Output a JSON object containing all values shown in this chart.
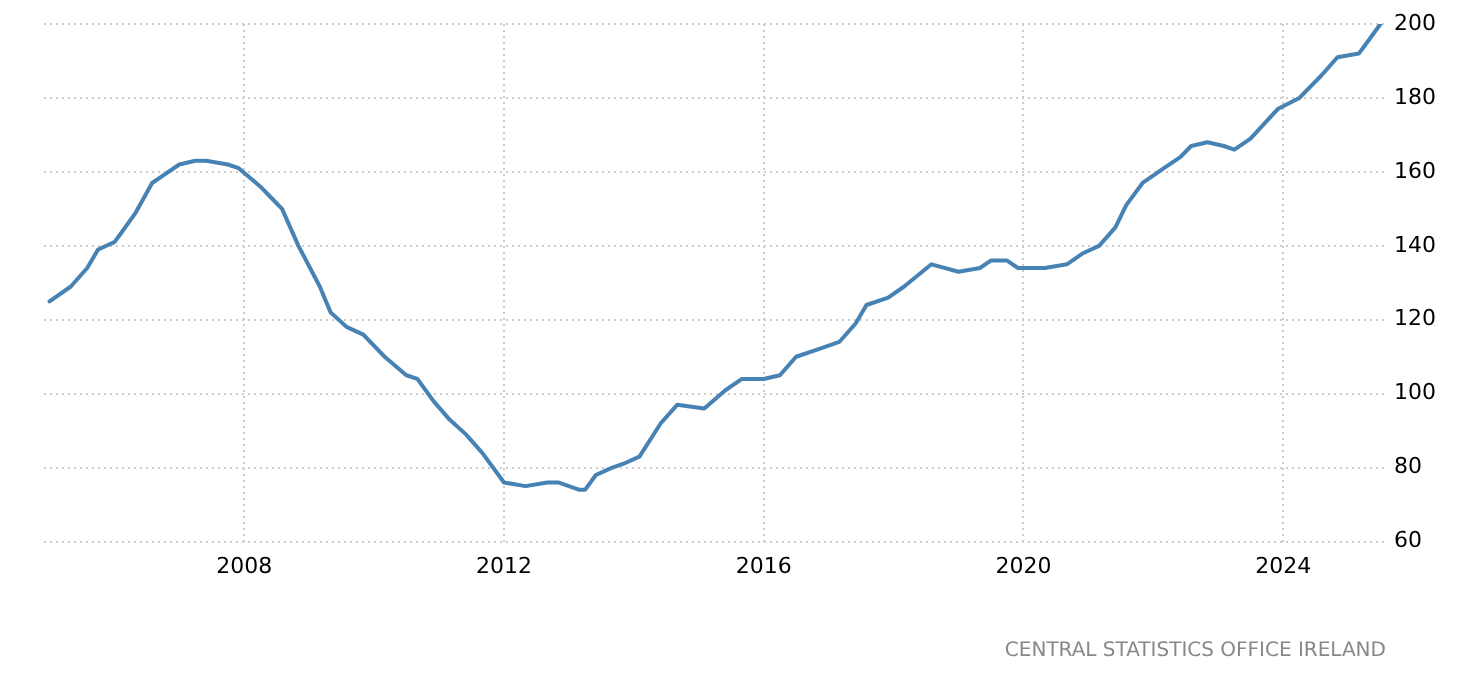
{
  "chart_data": {
    "type": "line",
    "x": [
      "2005-01",
      "2005-05",
      "2005-08",
      "2005-10",
      "2006-01",
      "2006-02",
      "2006-05",
      "2006-08",
      "2006-10",
      "2007-01",
      "2007-04",
      "2007-06",
      "2007-10",
      "2007-12",
      "2008-04",
      "2008-06",
      "2008-08",
      "2008-11",
      "2009-03",
      "2009-05",
      "2009-08",
      "2009-11",
      "2010-03",
      "2010-07",
      "2010-09",
      "2010-12",
      "2011-03",
      "2011-06",
      "2011-09",
      "2012-01",
      "2012-05",
      "2012-09",
      "2012-11",
      "2013-03",
      "2013-04",
      "2013-06",
      "2013-09",
      "2013-11",
      "2014-02",
      "2014-06",
      "2014-09",
      "2015-02",
      "2015-06",
      "2015-09",
      "2016-01",
      "2016-04",
      "2016-07",
      "2016-11",
      "2017-03",
      "2017-06",
      "2017-08",
      "2017-12",
      "2018-03",
      "2018-08",
      "2019-01",
      "2019-05",
      "2019-07",
      "2019-10",
      "2019-12",
      "2020-05",
      "2020-09",
      "2020-12",
      "2021-03",
      "2021-06",
      "2021-08",
      "2021-11",
      "2022-03",
      "2022-06",
      "2022-08",
      "2022-11",
      "2023-02",
      "2023-04",
      "2023-07",
      "2023-12",
      "2024-04",
      "2024-08",
      "2024-11",
      "2025-03",
      "2025-04",
      "2025-07"
    ],
    "series": [
      {
        "color": "#4682b4",
        "values": [
          125,
          129,
          134,
          139,
          141,
          143,
          149,
          157,
          159,
          162,
          163,
          163,
          162,
          161,
          156,
          153,
          150,
          140,
          129,
          122,
          118,
          116,
          110,
          105,
          104,
          98,
          93,
          89,
          84,
          76,
          75,
          76,
          76,
          74,
          74,
          78,
          80,
          81,
          83,
          92,
          97,
          96,
          101,
          104,
          104,
          105,
          110,
          112,
          114,
          119,
          124,
          126,
          129,
          135,
          133,
          134,
          136,
          136,
          134,
          134,
          135,
          138,
          140,
          145,
          151,
          157,
          161,
          164,
          167,
          168,
          167,
          166,
          169,
          177,
          180,
          186,
          191,
          192,
          194,
          200
        ]
      }
    ],
    "xlim": [
      "2004-12",
      "2025-08"
    ],
    "xticks": [
      "2008",
      "2012",
      "2016",
      "2020",
      "2024"
    ],
    "ylim": [
      60,
      200
    ],
    "yticks": [
      60,
      80,
      100,
      120,
      140,
      160,
      180,
      200
    ],
    "grid": true,
    "legend": false,
    "marker": "none",
    "line_style": "solid",
    "annotations": [
      "CENTRAL STATISTICS OFFICE IRELAND"
    ]
  }
}
